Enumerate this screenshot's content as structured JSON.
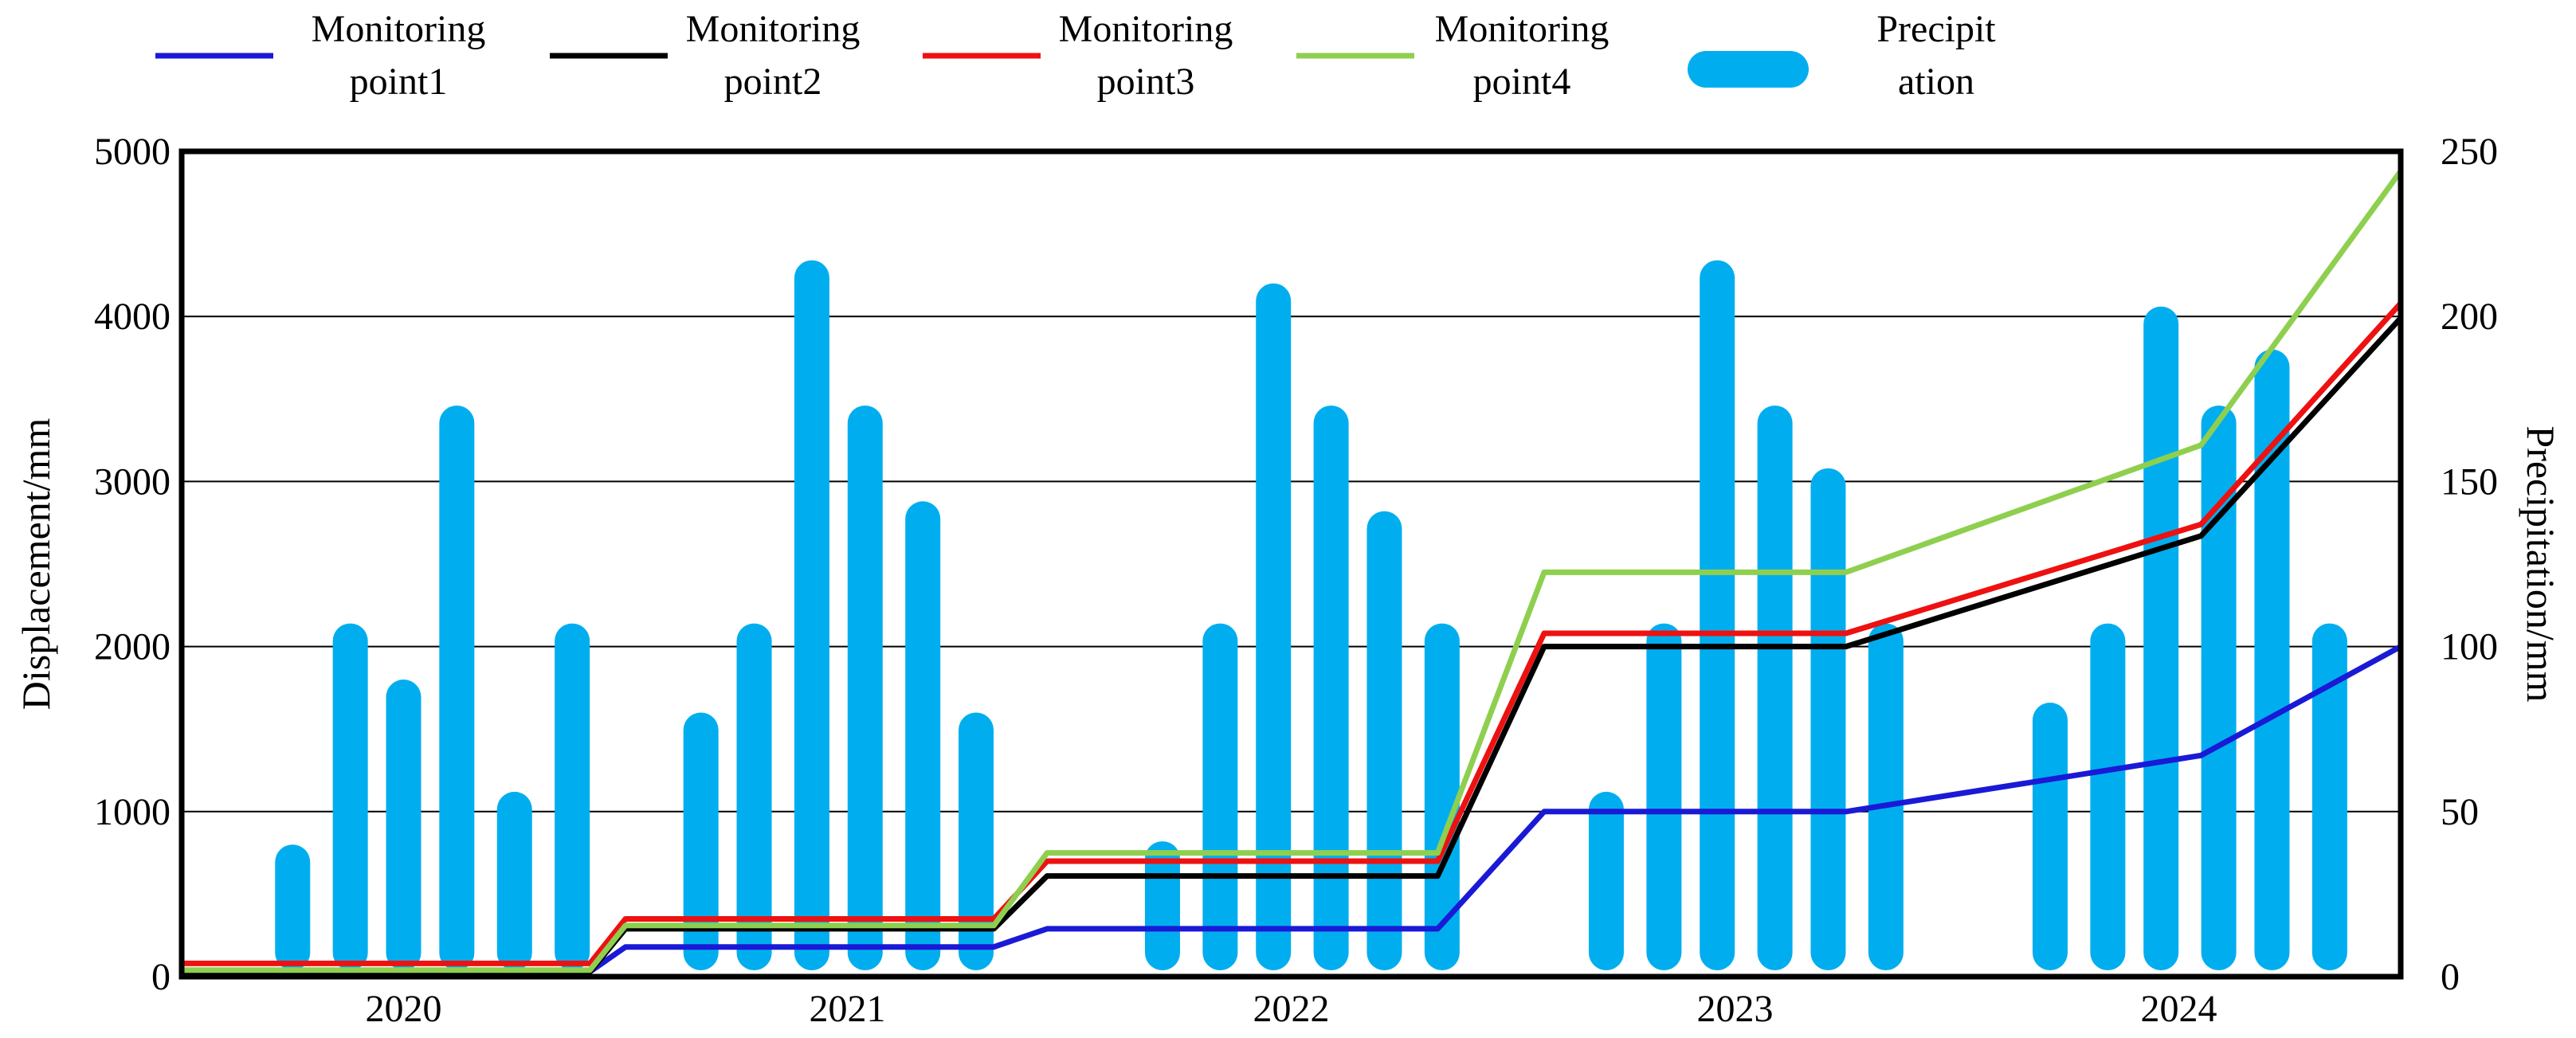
{
  "chart_data": {
    "type": "bar-line-combo",
    "title": "",
    "xlabel": "",
    "ylabel_left": "Displacement/mm",
    "ylabel_right": "Precipitation/mm",
    "ylim_left": [
      0,
      5000
    ],
    "ylim_right": [
      0,
      250
    ],
    "yticks_left": [
      "0",
      "1000",
      "2000",
      "3000",
      "4000",
      "5000"
    ],
    "yticks_right": [
      "0",
      "50",
      "100",
      "150",
      "200",
      "250"
    ],
    "x_categories": [
      "2020",
      "2021",
      "2022",
      "2023",
      "2024"
    ],
    "x_range": [
      0,
      5
    ],
    "grid": true,
    "legend_position": "top",
    "legend": [
      {
        "name_lines": [
          "Monitoring",
          "point1"
        ],
        "color": "#1a1ad6",
        "kind": "line"
      },
      {
        "name_lines": [
          "Monitoring",
          "point2"
        ],
        "color": "#000000",
        "kind": "line"
      },
      {
        "name_lines": [
          "Monitoring",
          "point3"
        ],
        "color": "#ee1111",
        "kind": "line"
      },
      {
        "name_lines": [
          "Monitoring",
          "point4"
        ],
        "color": "#8fcf4f",
        "kind": "line"
      },
      {
        "name_lines": [
          "Precipit",
          "ation"
        ],
        "color": "#00aeef",
        "kind": "bar"
      }
    ],
    "precipitation": {
      "name": "Precipitation",
      "color": "#00aeef",
      "x": [
        0.25,
        0.38,
        0.5,
        0.62,
        0.75,
        0.88,
        1.17,
        1.29,
        1.42,
        1.54,
        1.67,
        1.79,
        2.21,
        2.34,
        2.46,
        2.59,
        2.71,
        2.84,
        2.96,
        3.21,
        3.34,
        3.46,
        3.59,
        3.71,
        3.84,
        4.21,
        4.34,
        4.46,
        4.59,
        4.71,
        4.84
      ],
      "values": [
        40,
        107,
        90,
        173,
        56,
        107,
        80,
        107,
        217,
        173,
        144,
        80,
        41,
        107,
        210,
        173,
        141,
        107,
        0,
        56,
        107,
        217,
        173,
        154,
        107,
        83,
        107,
        203,
        173,
        190,
        107
      ]
    },
    "series": [
      {
        "name": "Monitoring point1",
        "color": "#1a1ad6",
        "x": [
          0,
          0.92,
          1.0,
          1.83,
          1.95,
          2.83,
          3.07,
          3.75,
          4.55,
          5.0
        ],
        "values": [
          30,
          30,
          180,
          180,
          290,
          290,
          1000,
          1000,
          1340,
          2000
        ]
      },
      {
        "name": "Monitoring point2",
        "color": "#000000",
        "x": [
          0,
          0.92,
          1.0,
          1.83,
          1.95,
          2.83,
          3.07,
          3.75,
          4.55,
          5.0
        ],
        "values": [
          30,
          30,
          290,
          290,
          610,
          610,
          2000,
          2000,
          2670,
          3990
        ]
      },
      {
        "name": "Monitoring point3",
        "color": "#ee1111",
        "x": [
          0,
          0.92,
          1.0,
          1.83,
          1.95,
          2.83,
          3.07,
          3.75,
          4.55,
          5.0
        ],
        "values": [
          80,
          80,
          350,
          350,
          700,
          700,
          2080,
          2080,
          2740,
          4080
        ]
      },
      {
        "name": "Monitoring point4",
        "color": "#8fcf4f",
        "x": [
          0,
          0.92,
          1.0,
          1.83,
          1.95,
          2.83,
          3.07,
          3.75,
          4.55,
          5.0
        ],
        "values": [
          40,
          40,
          310,
          310,
          750,
          750,
          2450,
          2450,
          3220,
          4880
        ]
      }
    ]
  }
}
